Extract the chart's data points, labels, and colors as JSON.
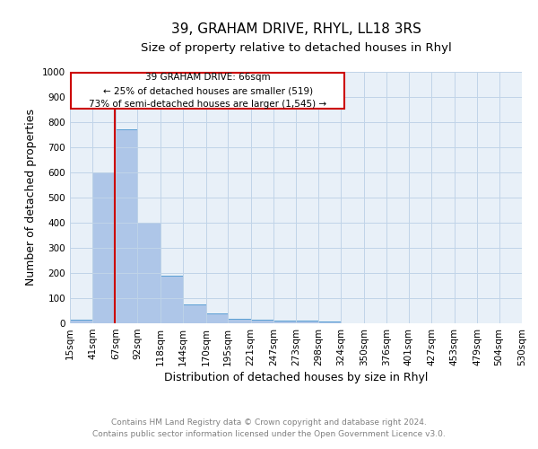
{
  "title": "39, GRAHAM DRIVE, RHYL, LL18 3RS",
  "subtitle": "Size of property relative to detached houses in Rhyl",
  "xlabel": "Distribution of detached houses by size in Rhyl",
  "ylabel": "Number of detached properties",
  "bin_edges": [
    15,
    41,
    67,
    92,
    118,
    144,
    170,
    195,
    221,
    247,
    273,
    298,
    324,
    350,
    376,
    401,
    427,
    453,
    479,
    504,
    530
  ],
  "bar_heights": [
    15,
    600,
    770,
    400,
    190,
    75,
    38,
    18,
    15,
    12,
    10,
    8,
    0,
    0,
    0,
    0,
    0,
    0,
    0,
    0
  ],
  "bar_color": "#aec6e8",
  "bar_edge_color": "#5a9fd4",
  "property_size": 66,
  "vline_color": "#cc0000",
  "annotation_line1": "39 GRAHAM DRIVE: 66sqm",
  "annotation_line2": "← 25% of detached houses are smaller (519)",
  "annotation_line3": "73% of semi-detached houses are larger (1,545) →",
  "annotation_box_color": "#cc0000",
  "ylim": [
    0,
    1000
  ],
  "xlim": [
    15,
    530
  ],
  "grid_color": "#c0d4e8",
  "background_color": "#e8f0f8",
  "footer_line1": "Contains HM Land Registry data © Crown copyright and database right 2024.",
  "footer_line2": "Contains public sector information licensed under the Open Government Licence v3.0.",
  "title_fontsize": 11,
  "subtitle_fontsize": 9.5,
  "axis_label_fontsize": 9,
  "tick_fontsize": 7.5,
  "annotation_fontsize": 7.5,
  "footer_fontsize": 6.5,
  "yticks": [
    0,
    100,
    200,
    300,
    400,
    500,
    600,
    700,
    800,
    900,
    1000
  ]
}
